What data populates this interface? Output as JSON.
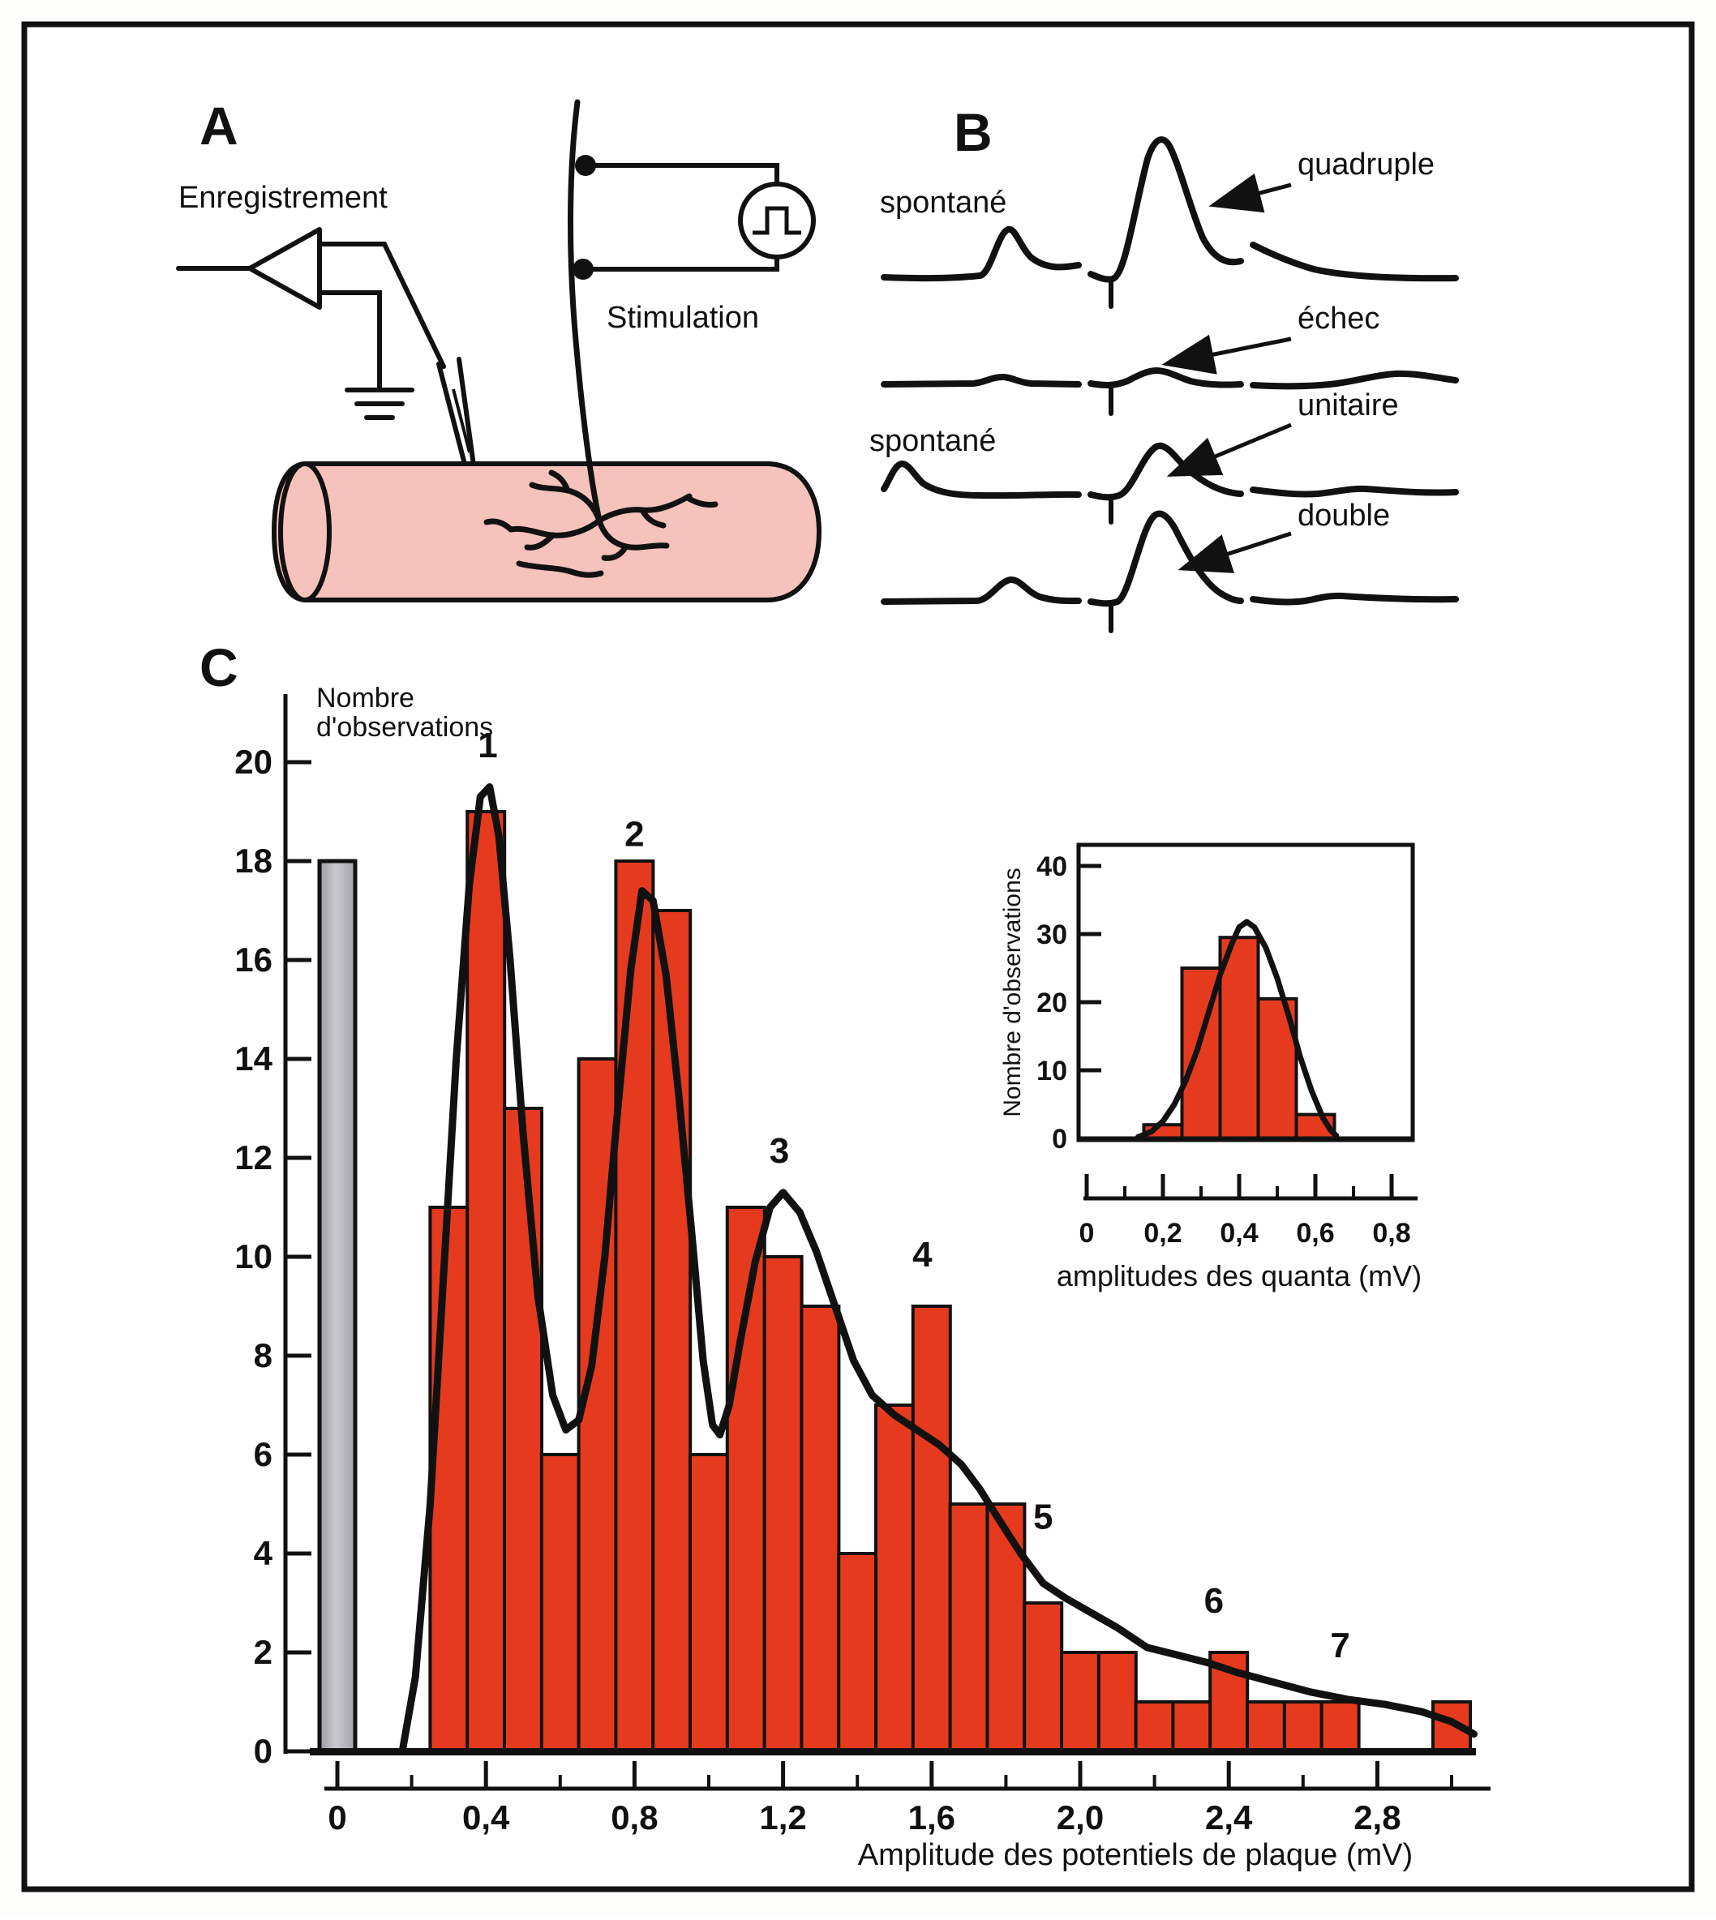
{
  "figure": {
    "panel_a": {
      "label": "A",
      "recording_label": "Enregistrement",
      "stimulation_label": "Stimulation"
    },
    "panel_b": {
      "label": "B",
      "rows": [
        {
          "side_label": "spontané",
          "annotation": "quadruple"
        },
        {
          "side_label": "",
          "annotation": "échec"
        },
        {
          "side_label": "spontané",
          "annotation": "unitaire"
        },
        {
          "side_label": "",
          "annotation": "double"
        }
      ]
    },
    "panel_c": {
      "label": "C"
    }
  },
  "colors": {
    "bar_red": "#e63a1e",
    "failures_gray": "#aeaeb6",
    "muscle_pink": "#f5c2bc",
    "ink": "#111111"
  },
  "chart_data": [
    {
      "type": "bar",
      "title": "",
      "ylabel": "Nombre d'observations",
      "ylabel_lines": [
        "Nombre",
        "d'observations"
      ],
      "xlabel": "Amplitude des potentiels de plaque (mV)",
      "ylim": [
        0,
        20
      ],
      "xlim": [
        -0.1,
        3.1
      ],
      "grid": false,
      "bin_width": 0.1,
      "y_ticks": [
        0,
        2,
        4,
        6,
        8,
        10,
        12,
        14,
        16,
        18,
        20
      ],
      "x_ticks": [
        0,
        0.4,
        0.8,
        1.2,
        1.6,
        2.0,
        2.4,
        2.8
      ],
      "x_tick_labels": [
        "0",
        "0,4",
        "0,8",
        "1,2",
        "1,6",
        "2,0",
        "2,4",
        "2,8"
      ],
      "x_minor_ticks": [
        0.2,
        0.6,
        1.0,
        1.4,
        1.8,
        2.2,
        2.6,
        3.0
      ],
      "failures_bar": {
        "x": 0,
        "value": 18
      },
      "bars": [
        {
          "x": 0.3,
          "value": 11
        },
        {
          "x": 0.4,
          "value": 19
        },
        {
          "x": 0.5,
          "value": 13
        },
        {
          "x": 0.6,
          "value": 6
        },
        {
          "x": 0.7,
          "value": 14
        },
        {
          "x": 0.8,
          "value": 18
        },
        {
          "x": 0.9,
          "value": 17
        },
        {
          "x": 1.0,
          "value": 6
        },
        {
          "x": 1.1,
          "value": 11
        },
        {
          "x": 1.2,
          "value": 10
        },
        {
          "x": 1.3,
          "value": 9
        },
        {
          "x": 1.4,
          "value": 4
        },
        {
          "x": 1.5,
          "value": 7
        },
        {
          "x": 1.6,
          "value": 9
        },
        {
          "x": 1.7,
          "value": 5
        },
        {
          "x": 1.8,
          "value": 5
        },
        {
          "x": 1.9,
          "value": 3
        },
        {
          "x": 2.0,
          "value": 2
        },
        {
          "x": 2.1,
          "value": 2
        },
        {
          "x": 2.2,
          "value": 1
        },
        {
          "x": 2.3,
          "value": 1
        },
        {
          "x": 2.4,
          "value": 2
        },
        {
          "x": 2.5,
          "value": 1
        },
        {
          "x": 2.6,
          "value": 1
        },
        {
          "x": 2.7,
          "value": 1
        },
        {
          "x": 2.8,
          "value": 0
        },
        {
          "x": 2.9,
          "value": 0
        },
        {
          "x": 3.0,
          "value": 1
        }
      ],
      "peak_labels": [
        {
          "text": "1",
          "x": 0.405,
          "y": 20.1
        },
        {
          "text": "2",
          "x": 0.8,
          "y": 18.3
        },
        {
          "text": "3",
          "x": 1.19,
          "y": 11.9
        },
        {
          "text": "4",
          "x": 1.575,
          "y": 9.8
        },
        {
          "text": "5",
          "x": 1.9,
          "y": 4.5
        },
        {
          "text": "6",
          "x": 2.36,
          "y": 2.8
        },
        {
          "text": "7",
          "x": 2.7,
          "y": 1.9
        }
      ],
      "fit_curve": [
        [
          0.175,
          0
        ],
        [
          0.21,
          1.5
        ],
        [
          0.25,
          5
        ],
        [
          0.285,
          9.5
        ],
        [
          0.32,
          14
        ],
        [
          0.355,
          17.5
        ],
        [
          0.385,
          19.3
        ],
        [
          0.41,
          19.5
        ],
        [
          0.435,
          18.5
        ],
        [
          0.465,
          16
        ],
        [
          0.5,
          12.5
        ],
        [
          0.54,
          9.2
        ],
        [
          0.58,
          7.2
        ],
        [
          0.615,
          6.5
        ],
        [
          0.65,
          6.7
        ],
        [
          0.685,
          7.8
        ],
        [
          0.72,
          10
        ],
        [
          0.755,
          13
        ],
        [
          0.79,
          15.8
        ],
        [
          0.82,
          17.4
        ],
        [
          0.85,
          17.2
        ],
        [
          0.885,
          15.7
        ],
        [
          0.92,
          13.2
        ],
        [
          0.955,
          10.4
        ],
        [
          0.985,
          7.9
        ],
        [
          1.01,
          6.6
        ],
        [
          1.03,
          6.4
        ],
        [
          1.055,
          7
        ],
        [
          1.085,
          8.3
        ],
        [
          1.125,
          9.9
        ],
        [
          1.165,
          11
        ],
        [
          1.2,
          11.3
        ],
        [
          1.245,
          10.9
        ],
        [
          1.29,
          10.1
        ],
        [
          1.34,
          9
        ],
        [
          1.39,
          7.9
        ],
        [
          1.44,
          7.2
        ],
        [
          1.5,
          6.8
        ],
        [
          1.56,
          6.5
        ],
        [
          1.62,
          6.2
        ],
        [
          1.68,
          5.8
        ],
        [
          1.73,
          5.3
        ],
        [
          1.78,
          4.7
        ],
        [
          1.84,
          4
        ],
        [
          1.9,
          3.4
        ],
        [
          1.96,
          3.1
        ],
        [
          2.03,
          2.8
        ],
        [
          2.1,
          2.5
        ],
        [
          2.18,
          2.1
        ],
        [
          2.26,
          1.95
        ],
        [
          2.34,
          1.8
        ],
        [
          2.42,
          1.6
        ],
        [
          2.52,
          1.4
        ],
        [
          2.62,
          1.2
        ],
        [
          2.72,
          1.05
        ],
        [
          2.82,
          0.95
        ],
        [
          2.92,
          0.8
        ],
        [
          3.0,
          0.6
        ],
        [
          3.06,
          0.35
        ]
      ]
    },
    {
      "type": "bar",
      "title": "",
      "ylabel": "Nombre d'observations",
      "xlabel": "amplitudes des quanta (mV)",
      "ylim": [
        0,
        40
      ],
      "xlim": [
        0,
        0.9
      ],
      "grid": false,
      "bin_width": 0.1,
      "y_ticks": [
        0,
        10,
        20,
        30,
        40
      ],
      "x_ticks": [
        0,
        0.2,
        0.4,
        0.6,
        0.8
      ],
      "x_tick_labels": [
        "0",
        "0,2",
        "0,4",
        "0,6",
        "0,8"
      ],
      "x_minor_ticks": [
        0.1,
        0.3,
        0.5,
        0.7
      ],
      "bars": [
        {
          "x": 0.2,
          "value": 2
        },
        {
          "x": 0.3,
          "value": 25
        },
        {
          "x": 0.4,
          "value": 29.5
        },
        {
          "x": 0.5,
          "value": 20.5
        },
        {
          "x": 0.6,
          "value": 3.5
        }
      ],
      "fit_curve": [
        [
          0.135,
          0.2
        ],
        [
          0.17,
          1
        ],
        [
          0.2,
          2.5
        ],
        [
          0.23,
          5
        ],
        [
          0.26,
          8.5
        ],
        [
          0.29,
          13
        ],
        [
          0.32,
          18.5
        ],
        [
          0.35,
          24
        ],
        [
          0.38,
          28.5
        ],
        [
          0.4,
          31
        ],
        [
          0.42,
          31.8
        ],
        [
          0.44,
          31
        ],
        [
          0.47,
          28
        ],
        [
          0.5,
          23.5
        ],
        [
          0.53,
          18
        ],
        [
          0.56,
          12
        ],
        [
          0.59,
          7
        ],
        [
          0.62,
          3
        ],
        [
          0.64,
          1.2
        ],
        [
          0.655,
          0.4
        ]
      ]
    }
  ]
}
